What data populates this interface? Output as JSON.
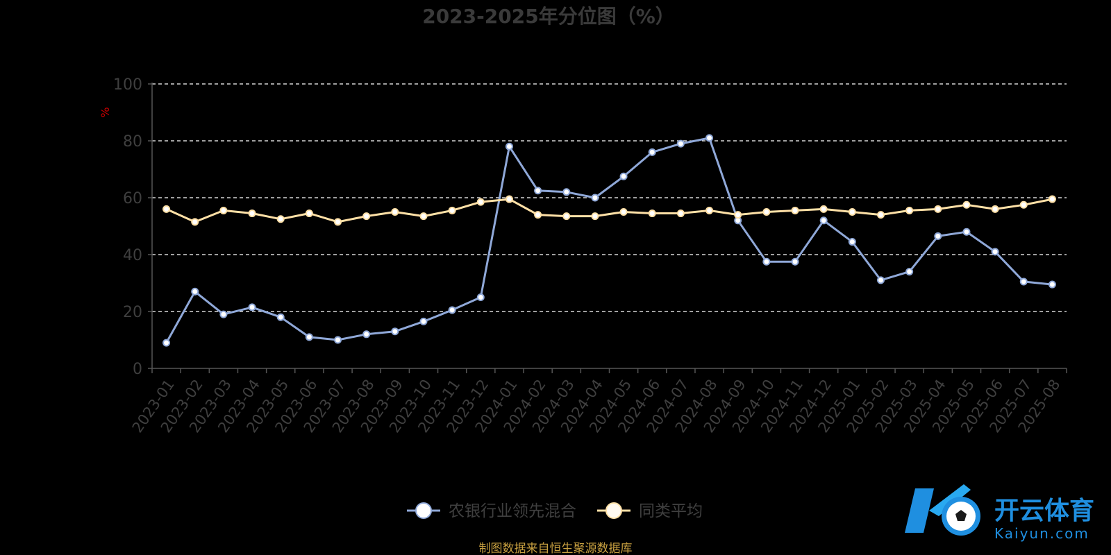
{
  "chart_data": {
    "type": "line",
    "title": "2023-2025年分位图（%）",
    "ylabel": "%",
    "ylim": [
      0,
      100
    ],
    "yticks": [
      0,
      20,
      40,
      60,
      80,
      100
    ],
    "grid": true,
    "legend_position": "bottom-center",
    "categories": [
      "2023-01",
      "2023-02",
      "2023-03",
      "2023-04",
      "2023-05",
      "2023-06",
      "2023-07",
      "2023-08",
      "2023-09",
      "2023-10",
      "2023-11",
      "2023-12",
      "2024-01",
      "2024-02",
      "2024-03",
      "2024-04",
      "2024-05",
      "2024-06",
      "2024-07",
      "2024-08",
      "2024-09",
      "2024-10",
      "2024-11",
      "2024-12",
      "2025-01",
      "2025-02",
      "2025-03",
      "2025-04",
      "2025-05",
      "2025-06",
      "2025-07",
      "2025-08"
    ],
    "series": [
      {
        "name": "农银行业领先混合",
        "color": "#8fa8d8",
        "values": [
          9,
          27,
          19,
          21.5,
          18,
          11,
          10,
          12,
          13,
          16.5,
          20.5,
          25,
          78,
          62.5,
          62,
          60,
          67.5,
          76,
          79,
          81,
          52,
          37.5,
          37.5,
          52,
          44.5,
          31,
          34,
          46.5,
          48,
          41,
          30.5,
          29.5
        ]
      },
      {
        "name": "同类平均",
        "color": "#ffe0a6",
        "values": [
          56,
          51.5,
          55.5,
          54.5,
          52.5,
          54.5,
          51.5,
          53.5,
          55,
          53.5,
          55.5,
          58.5,
          59.5,
          54,
          53.5,
          53.5,
          55,
          54.5,
          54.5,
          55.5,
          54,
          55,
          55.5,
          56,
          55,
          54,
          55.5,
          56,
          57.5,
          56,
          57.5,
          59.5
        ]
      }
    ]
  },
  "source": "制图数据来自恒生聚源数据库",
  "watermark": {
    "name_cn": "开云体育",
    "name_en": "Kaiyun.com",
    "logo": "ko-soccer-logo"
  }
}
